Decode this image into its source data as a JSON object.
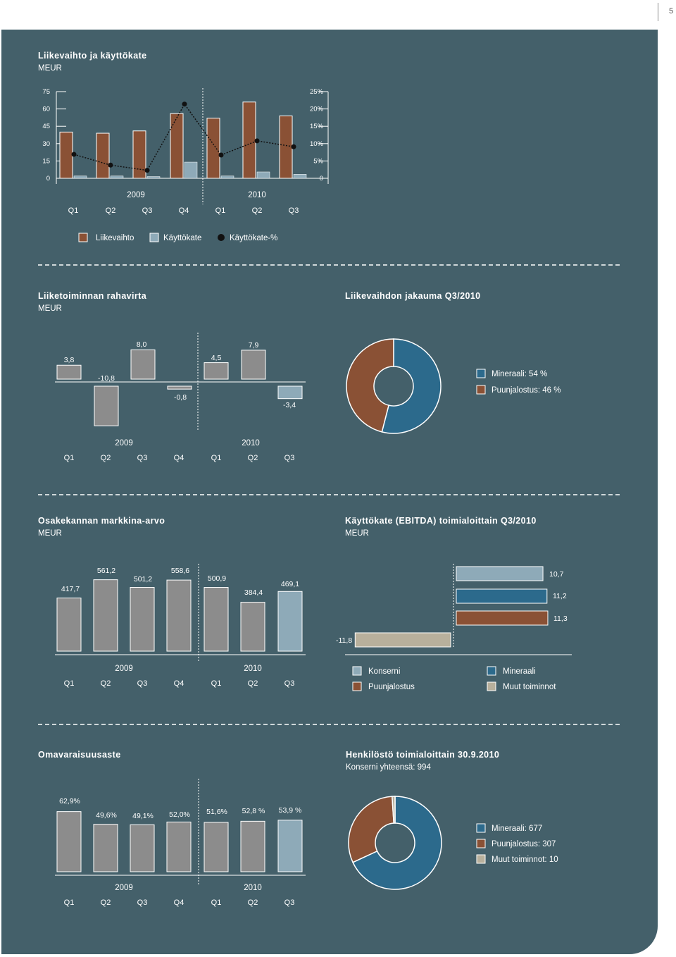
{
  "page_number": "5",
  "colors": {
    "panel": "#44606a",
    "brown": "#8a5135",
    "light_blue": "#8eaab8",
    "dark_blue": "#2c6a8c",
    "grey_bar": "#8c8c8c",
    "beige": "#b8b09c",
    "text": "#ffffff"
  },
  "chart_data": [
    {
      "id": "liikevaihto",
      "type": "bar",
      "title": "Liikevaihto ja käyttökate",
      "subtitle": "MEUR",
      "years": [
        "2009",
        "2010"
      ],
      "categories": [
        "Q1",
        "Q2",
        "Q3",
        "Q4",
        "Q1",
        "Q2",
        "Q3"
      ],
      "y_ticks": [
        "75",
        "60",
        "45",
        "30",
        "15",
        "0"
      ],
      "y2_ticks": [
        "25%",
        "20%",
        "15%",
        "10%",
        "5%",
        "0"
      ],
      "ylim": [
        0,
        75
      ],
      "y2lim": [
        0,
        25
      ],
      "series": [
        {
          "name": "Liikevaihto",
          "type": "bar",
          "values": [
            40,
            39,
            41,
            56,
            52,
            66,
            54
          ]
        },
        {
          "name": "Käyttökate",
          "type": "bar",
          "values": [
            2,
            2,
            1.5,
            14,
            2,
            5.5,
            3.5
          ]
        },
        {
          "name": "Käyttökate-%",
          "type": "line",
          "values": [
            6.9,
            3.8,
            2.3,
            21.4,
            6.7,
            10.8,
            9.1
          ]
        }
      ],
      "legend": [
        "Liikevaihto",
        "Käyttökate",
        "Käyttökate-%"
      ]
    },
    {
      "id": "rahavirta",
      "type": "bar",
      "title": "Liiketoiminnan rahavirta",
      "subtitle": "MEUR",
      "years": [
        "2009",
        "2010"
      ],
      "categories": [
        "Q1",
        "Q2",
        "Q3",
        "Q4",
        "Q1",
        "Q2",
        "Q3"
      ],
      "values": [
        3.8,
        -10.8,
        8.0,
        -0.8,
        4.5,
        7.9,
        -3.4
      ],
      "labels": [
        "3,8",
        "-10,8",
        "8,0",
        "-0,8",
        "4,5",
        "7,9",
        "-3,4"
      ],
      "colors": [
        "grey",
        "grey",
        "grey",
        "grey",
        "grey",
        "grey",
        "light_blue"
      ]
    },
    {
      "id": "jakauma",
      "type": "pie",
      "title": "Liikevaihdon jakauma Q3/2010",
      "slices": [
        {
          "name": "Mineraali",
          "value": 54,
          "label": "Mineraali: 54 %",
          "color": "#2c6a8c"
        },
        {
          "name": "Puunjalostus",
          "value": 46,
          "label": "Puunjalostus: 46 %",
          "color": "#8a5135"
        }
      ]
    },
    {
      "id": "markkina",
      "type": "bar",
      "title": "Osakekannan markkina-arvo",
      "subtitle": "MEUR",
      "years": [
        "2009",
        "2010"
      ],
      "categories": [
        "Q1",
        "Q2",
        "Q3",
        "Q4",
        "Q1",
        "Q2",
        "Q3"
      ],
      "values": [
        417.7,
        561.2,
        501.2,
        558.6,
        500.9,
        384.4,
        469.1
      ],
      "labels": [
        "417,7",
        "561,2",
        "501,2",
        "558,6",
        "500,9",
        "384,4",
        "469,1"
      ]
    },
    {
      "id": "ebitda",
      "type": "bar",
      "orientation": "horizontal",
      "title": "Käyttökate (EBITDA) toimialoittain Q3/2010",
      "subtitle": "MEUR",
      "bars": [
        {
          "name": "Konserni",
          "value": 10.7,
          "label": "10,7",
          "color": "#8eaab8"
        },
        {
          "name": "Mineraali",
          "value": 11.2,
          "label": "11,2",
          "color": "#2c6a8c"
        },
        {
          "name": "Puunjalostus",
          "value": 11.3,
          "label": "11,3",
          "color": "#8a5135"
        },
        {
          "name": "Muut toiminnot",
          "value": -11.8,
          "label": "-11,8",
          "color": "#b8b09c"
        }
      ],
      "legend": [
        "Konserni",
        "Mineraali",
        "Puunjalostus",
        "Muut toiminnot"
      ]
    },
    {
      "id": "omavaraisuus",
      "type": "bar",
      "title": "Omavaraisuusaste",
      "years": [
        "2009",
        "2010"
      ],
      "categories": [
        "Q1",
        "Q2",
        "Q3",
        "Q4",
        "Q1",
        "Q2",
        "Q3"
      ],
      "values": [
        62.9,
        49.6,
        49.1,
        52.0,
        51.6,
        52.8,
        53.9
      ],
      "labels": [
        "62,9%",
        "49,6%",
        "49,1%",
        "52,0%",
        "51,6%",
        "52,8 %",
        "53,9 %"
      ]
    },
    {
      "id": "henkilosto",
      "type": "pie",
      "title": "Henkilöstö toimialoittain 30.9.2010",
      "subtitle": "Konserni yhteensä: 994",
      "slices": [
        {
          "name": "Mineraali",
          "value": 677,
          "label": "Mineraali: 677",
          "color": "#2c6a8c"
        },
        {
          "name": "Puunjalostus",
          "value": 307,
          "label": "Puunjalostus: 307",
          "color": "#8a5135"
        },
        {
          "name": "Muut toiminnot",
          "value": 10,
          "label": "Muut toiminnot: 10",
          "color": "#b8b09c"
        }
      ]
    }
  ]
}
